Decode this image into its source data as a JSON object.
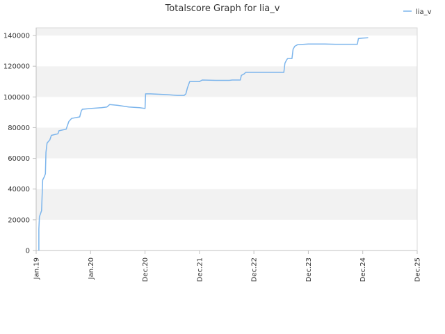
{
  "chart_data": {
    "type": "line",
    "title": "Totalscore Graph for lia_v",
    "xlabel": "",
    "ylabel": "",
    "x_ticks": [
      "Jan.19",
      "Jan.20",
      "Dec.20",
      "Dec.21",
      "Dec.22",
      "Dec.23",
      "Dec.24",
      "Dec.25"
    ],
    "xlim": [
      "Jan.19",
      "Dec.25"
    ],
    "ylim": [
      0,
      145000
    ],
    "y_ticks": [
      0,
      20000,
      40000,
      60000,
      80000,
      100000,
      120000,
      140000
    ],
    "grid": "horizontal bands",
    "legend_position": "top-right",
    "colors": {
      "series": "#7cb5ec",
      "band": "#f2f2f2",
      "axis": "#c0c0c0"
    },
    "series": [
      {
        "name": "lia_v",
        "points": [
          [
            0.05,
            0
          ],
          [
            0.05,
            14000
          ],
          [
            0.06,
            22000
          ],
          [
            0.08,
            24000
          ],
          [
            0.1,
            26000
          ],
          [
            0.12,
            46000
          ],
          [
            0.15,
            48000
          ],
          [
            0.17,
            50000
          ],
          [
            0.18,
            64000
          ],
          [
            0.2,
            70000
          ],
          [
            0.25,
            72000
          ],
          [
            0.28,
            75000
          ],
          [
            0.4,
            76000
          ],
          [
            0.42,
            78000
          ],
          [
            0.55,
            79000
          ],
          [
            0.6,
            84000
          ],
          [
            0.65,
            86000
          ],
          [
            0.8,
            87000
          ],
          [
            0.83,
            91000
          ],
          [
            0.85,
            92000
          ],
          [
            1.0,
            92500
          ],
          [
            1.2,
            93000
          ],
          [
            1.3,
            93500
          ],
          [
            1.35,
            95000
          ],
          [
            1.5,
            94500
          ],
          [
            1.7,
            93500
          ],
          [
            1.9,
            93000
          ],
          [
            2.0,
            92500
          ],
          [
            2.01,
            102000
          ],
          [
            2.1,
            102000
          ],
          [
            2.2,
            101800
          ],
          [
            2.4,
            101500
          ],
          [
            2.6,
            101000
          ],
          [
            2.72,
            101000
          ],
          [
            2.75,
            102000
          ],
          [
            2.78,
            106000
          ],
          [
            2.8,
            108000
          ],
          [
            2.82,
            110000
          ],
          [
            3.0,
            110000
          ],
          [
            3.05,
            111000
          ],
          [
            3.3,
            110800
          ],
          [
            3.55,
            110800
          ],
          [
            3.6,
            111000
          ],
          [
            3.75,
            111000
          ],
          [
            3.77,
            114000
          ],
          [
            3.82,
            115000
          ],
          [
            3.85,
            116000
          ],
          [
            4.0,
            116000
          ],
          [
            4.5,
            116000
          ],
          [
            4.55,
            116000
          ],
          [
            4.57,
            122000
          ],
          [
            4.6,
            124000
          ],
          [
            4.62,
            125000
          ],
          [
            4.7,
            125000
          ],
          [
            4.72,
            131000
          ],
          [
            4.75,
            133000
          ],
          [
            4.8,
            134000
          ],
          [
            5.0,
            134500
          ],
          [
            5.3,
            134500
          ],
          [
            5.5,
            134300
          ],
          [
            5.9,
            134300
          ],
          [
            5.92,
            138000
          ],
          [
            6.0,
            138300
          ],
          [
            6.1,
            138500
          ]
        ]
      }
    ]
  }
}
